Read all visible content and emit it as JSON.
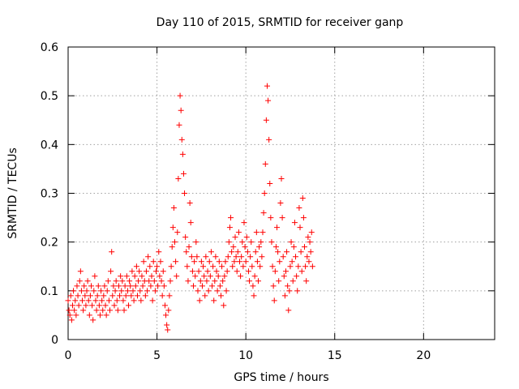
{
  "chart_data": {
    "type": "scatter",
    "title": "Day 110 of 2015, SRMTID for receiver ganp",
    "xlabel": "GPS time / hours",
    "ylabel": "SRMTID / TECUs",
    "xlim": [
      0,
      24
    ],
    "ylim": [
      0,
      0.6
    ],
    "xticks": [
      0,
      5,
      10,
      15,
      20
    ],
    "yticks": [
      0,
      0.1,
      0.2,
      0.3,
      0.4,
      0.5,
      0.6
    ],
    "xtick_labels": [
      "0",
      "5",
      "10",
      "15",
      "20"
    ],
    "ytick_labels": [
      "0",
      "0.1",
      "0.2",
      "0.3",
      "0.4",
      "0.5",
      "0.6"
    ],
    "grid": true,
    "marker": "plus",
    "color": "#ff0000",
    "series": [
      {
        "name": "SRMTID",
        "points": [
          [
            0.0,
            0.08
          ],
          [
            0.05,
            0.06
          ],
          [
            0.1,
            0.05
          ],
          [
            0.15,
            0.09
          ],
          [
            0.2,
            0.04
          ],
          [
            0.25,
            0.07
          ],
          [
            0.3,
            0.1
          ],
          [
            0.35,
            0.06
          ],
          [
            0.4,
            0.08
          ],
          [
            0.45,
            0.05
          ],
          [
            0.5,
            0.11
          ],
          [
            0.55,
            0.09
          ],
          [
            0.6,
            0.07
          ],
          [
            0.65,
            0.12
          ],
          [
            0.7,
            0.14
          ],
          [
            0.75,
            0.1
          ],
          [
            0.8,
            0.08
          ],
          [
            0.85,
            0.06
          ],
          [
            0.9,
            0.11
          ],
          [
            0.95,
            0.09
          ],
          [
            1.0,
            0.07
          ],
          [
            1.05,
            0.1
          ],
          [
            1.1,
            0.12
          ],
          [
            1.15,
            0.08
          ],
          [
            1.2,
            0.05
          ],
          [
            1.25,
            0.09
          ],
          [
            1.3,
            0.11
          ],
          [
            1.35,
            0.07
          ],
          [
            1.4,
            0.04
          ],
          [
            1.45,
            0.1
          ],
          [
            1.5,
            0.13
          ],
          [
            1.55,
            0.08
          ],
          [
            1.6,
            0.06
          ],
          [
            1.65,
            0.09
          ],
          [
            1.7,
            0.11
          ],
          [
            1.75,
            0.07
          ],
          [
            1.8,
            0.05
          ],
          [
            1.85,
            0.1
          ],
          [
            1.9,
            0.08
          ],
          [
            1.95,
            0.06
          ],
          [
            2.0,
            0.09
          ],
          [
            2.05,
            0.11
          ],
          [
            2.1,
            0.07
          ],
          [
            2.15,
            0.05
          ],
          [
            2.2,
            0.1
          ],
          [
            2.25,
            0.12
          ],
          [
            2.3,
            0.08
          ],
          [
            2.35,
            0.06
          ],
          [
            2.4,
            0.14
          ],
          [
            2.45,
            0.18
          ],
          [
            2.5,
            0.09
          ],
          [
            2.55,
            0.11
          ],
          [
            2.6,
            0.07
          ],
          [
            2.65,
            0.1
          ],
          [
            2.7,
            0.12
          ],
          [
            2.75,
            0.08
          ],
          [
            2.8,
            0.06
          ],
          [
            2.85,
            0.11
          ],
          [
            2.9,
            0.09
          ],
          [
            2.95,
            0.13
          ],
          [
            3.0,
            0.1
          ],
          [
            3.05,
            0.12
          ],
          [
            3.1,
            0.08
          ],
          [
            3.15,
            0.06
          ],
          [
            3.2,
            0.11
          ],
          [
            3.25,
            0.09
          ],
          [
            3.3,
            0.13
          ],
          [
            3.35,
            0.1
          ],
          [
            3.4,
            0.07
          ],
          [
            3.45,
            0.12
          ],
          [
            3.5,
            0.11
          ],
          [
            3.55,
            0.09
          ],
          [
            3.6,
            0.14
          ],
          [
            3.65,
            0.1
          ],
          [
            3.7,
            0.08
          ],
          [
            3.75,
            0.13
          ],
          [
            3.8,
            0.11
          ],
          [
            3.85,
            0.15
          ],
          [
            3.9,
            0.09
          ],
          [
            3.95,
            0.12
          ],
          [
            4.0,
            0.14
          ],
          [
            4.05,
            0.1
          ],
          [
            4.1,
            0.08
          ],
          [
            4.15,
            0.13
          ],
          [
            4.2,
            0.11
          ],
          [
            4.25,
            0.16
          ],
          [
            4.3,
            0.12
          ],
          [
            4.35,
            0.09
          ],
          [
            4.4,
            0.14
          ],
          [
            4.45,
            0.1
          ],
          [
            4.5,
            0.17
          ],
          [
            4.55,
            0.12
          ],
          [
            4.6,
            0.15
          ],
          [
            4.65,
            0.11
          ],
          [
            4.7,
            0.13
          ],
          [
            4.75,
            0.08
          ],
          [
            4.8,
            0.16
          ],
          [
            4.85,
            0.12
          ],
          [
            4.9,
            0.1
          ],
          [
            4.95,
            0.14
          ],
          [
            5.0,
            0.15
          ],
          [
            5.05,
            0.11
          ],
          [
            5.1,
            0.18
          ],
          [
            5.15,
            0.13
          ],
          [
            5.2,
            0.16
          ],
          [
            5.25,
            0.12
          ],
          [
            5.3,
            0.09
          ],
          [
            5.35,
            0.14
          ],
          [
            5.4,
            0.11
          ],
          [
            5.45,
            0.07
          ],
          [
            5.5,
            0.05
          ],
          [
            5.55,
            0.03
          ],
          [
            5.6,
            0.02
          ],
          [
            5.65,
            0.06
          ],
          [
            5.7,
            0.09
          ],
          [
            5.75,
            0.12
          ],
          [
            5.8,
            0.15
          ],
          [
            5.85,
            0.19
          ],
          [
            5.9,
            0.23
          ],
          [
            5.95,
            0.27
          ],
          [
            6.0,
            0.2
          ],
          [
            6.05,
            0.16
          ],
          [
            6.1,
            0.13
          ],
          [
            6.15,
            0.22
          ],
          [
            6.2,
            0.33
          ],
          [
            6.25,
            0.44
          ],
          [
            6.3,
            0.5
          ],
          [
            6.35,
            0.47
          ],
          [
            6.4,
            0.41
          ],
          [
            6.45,
            0.38
          ],
          [
            6.5,
            0.34
          ],
          [
            6.55,
            0.3
          ],
          [
            6.6,
            0.21
          ],
          [
            6.65,
            0.18
          ],
          [
            6.7,
            0.15
          ],
          [
            6.75,
            0.12
          ],
          [
            6.8,
            0.19
          ],
          [
            6.85,
            0.28
          ],
          [
            6.9,
            0.24
          ],
          [
            6.95,
            0.17
          ],
          [
            7.0,
            0.14
          ],
          [
            7.05,
            0.11
          ],
          [
            7.1,
            0.16
          ],
          [
            7.15,
            0.13
          ],
          [
            7.2,
            0.2
          ],
          [
            7.25,
            0.17
          ],
          [
            7.3,
            0.1
          ],
          [
            7.35,
            0.14
          ],
          [
            7.4,
            0.08
          ],
          [
            7.45,
            0.12
          ],
          [
            7.5,
            0.16
          ],
          [
            7.55,
            0.11
          ],
          [
            7.6,
            0.15
          ],
          [
            7.65,
            0.13
          ],
          [
            7.7,
            0.09
          ],
          [
            7.75,
            0.17
          ],
          [
            7.8,
            0.12
          ],
          [
            7.85,
            0.14
          ],
          [
            7.9,
            0.1
          ],
          [
            7.95,
            0.16
          ],
          [
            8.0,
            0.13
          ],
          [
            8.05,
            0.18
          ],
          [
            8.1,
            0.11
          ],
          [
            8.15,
            0.15
          ],
          [
            8.2,
            0.08
          ],
          [
            8.25,
            0.12
          ],
          [
            8.3,
            0.17
          ],
          [
            8.35,
            0.14
          ],
          [
            8.4,
            0.1
          ],
          [
            8.45,
            0.13
          ],
          [
            8.5,
            0.16
          ],
          [
            8.55,
            0.11
          ],
          [
            8.6,
            0.09
          ],
          [
            8.65,
            0.15
          ],
          [
            8.7,
            0.12
          ],
          [
            8.75,
            0.07
          ],
          [
            8.8,
            0.13
          ],
          [
            8.85,
            0.16
          ],
          [
            8.9,
            0.1
          ],
          [
            8.95,
            0.14
          ],
          [
            9.0,
            0.17
          ],
          [
            9.05,
            0.2
          ],
          [
            9.1,
            0.23
          ],
          [
            9.15,
            0.25
          ],
          [
            9.2,
            0.18
          ],
          [
            9.25,
            0.15
          ],
          [
            9.3,
            0.19
          ],
          [
            9.35,
            0.16
          ],
          [
            9.4,
            0.21
          ],
          [
            9.45,
            0.17
          ],
          [
            9.5,
            0.14
          ],
          [
            9.55,
            0.18
          ],
          [
            9.6,
            0.22
          ],
          [
            9.65,
            0.16
          ],
          [
            9.7,
            0.13
          ],
          [
            9.75,
            0.17
          ],
          [
            9.8,
            0.2
          ],
          [
            9.85,
            0.15
          ],
          [
            9.9,
            0.24
          ],
          [
            9.95,
            0.19
          ],
          [
            10.0,
            0.16
          ],
          [
            10.05,
            0.21
          ],
          [
            10.1,
            0.18
          ],
          [
            10.15,
            0.14
          ],
          [
            10.2,
            0.12
          ],
          [
            10.25,
            0.17
          ],
          [
            10.3,
            0.2
          ],
          [
            10.35,
            0.15
          ],
          [
            10.4,
            0.11
          ],
          [
            10.45,
            0.09
          ],
          [
            10.5,
            0.13
          ],
          [
            10.55,
            0.18
          ],
          [
            10.6,
            0.22
          ],
          [
            10.65,
            0.16
          ],
          [
            10.7,
            0.12
          ],
          [
            10.75,
            0.19
          ],
          [
            10.8,
            0.15
          ],
          [
            10.85,
            0.2
          ],
          [
            10.9,
            0.17
          ],
          [
            10.95,
            0.22
          ],
          [
            11.0,
            0.26
          ],
          [
            11.05,
            0.3
          ],
          [
            11.1,
            0.36
          ],
          [
            11.15,
            0.45
          ],
          [
            11.2,
            0.52
          ],
          [
            11.25,
            0.49
          ],
          [
            11.3,
            0.41
          ],
          [
            11.35,
            0.32
          ],
          [
            11.4,
            0.25
          ],
          [
            11.45,
            0.2
          ],
          [
            11.5,
            0.15
          ],
          [
            11.55,
            0.11
          ],
          [
            11.6,
            0.08
          ],
          [
            11.65,
            0.14
          ],
          [
            11.7,
            0.19
          ],
          [
            11.75,
            0.23
          ],
          [
            11.8,
            0.18
          ],
          [
            11.85,
            0.12
          ],
          [
            11.9,
            0.16
          ],
          [
            11.95,
            0.28
          ],
          [
            12.0,
            0.33
          ],
          [
            12.05,
            0.25
          ],
          [
            12.1,
            0.17
          ],
          [
            12.15,
            0.13
          ],
          [
            12.2,
            0.09
          ],
          [
            12.25,
            0.14
          ],
          [
            12.3,
            0.18
          ],
          [
            12.35,
            0.11
          ],
          [
            12.4,
            0.06
          ],
          [
            12.45,
            0.1
          ],
          [
            12.5,
            0.15
          ],
          [
            12.55,
            0.2
          ],
          [
            12.6,
            0.16
          ],
          [
            12.65,
            0.12
          ],
          [
            12.7,
            0.19
          ],
          [
            12.75,
            0.24
          ],
          [
            12.8,
            0.17
          ],
          [
            12.85,
            0.13
          ],
          [
            12.9,
            0.1
          ],
          [
            12.95,
            0.15
          ],
          [
            13.0,
            0.27
          ],
          [
            13.05,
            0.23
          ],
          [
            13.1,
            0.18
          ],
          [
            13.15,
            0.14
          ],
          [
            13.2,
            0.29
          ],
          [
            13.25,
            0.25
          ],
          [
            13.3,
            0.19
          ],
          [
            13.35,
            0.15
          ],
          [
            13.4,
            0.12
          ],
          [
            13.45,
            0.17
          ],
          [
            13.5,
            0.21
          ],
          [
            13.55,
            0.16
          ],
          [
            13.6,
            0.2
          ],
          [
            13.65,
            0.18
          ],
          [
            13.7,
            0.22
          ],
          [
            13.75,
            0.15
          ]
        ]
      }
    ]
  }
}
